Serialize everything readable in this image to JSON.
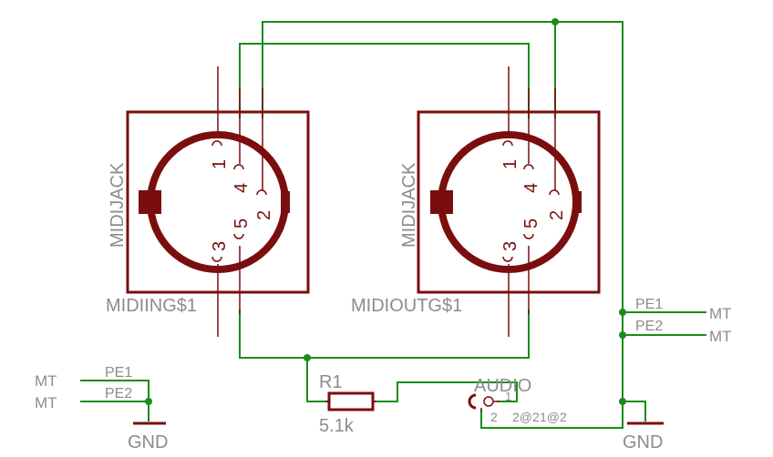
{
  "jacks": [
    {
      "label": "MIDIJACK",
      "name": "MIDIING$1",
      "pins": {
        "p1": "1",
        "p2": "2",
        "p3": "3",
        "p4": "4",
        "p5": "5"
      }
    },
    {
      "label": "MIDIJACK",
      "name": "MIDIOUTG$1",
      "pins": {
        "p1": "1",
        "p2": "2",
        "p3": "3",
        "p4": "4",
        "p5": "5"
      }
    }
  ],
  "resistor": {
    "name": "R1",
    "value": "5.1k"
  },
  "audio": {
    "name": "AUDIO",
    "pin1": "1",
    "pin2": "2",
    "extra": "2@2",
    "extra2": "1@2"
  },
  "left_ground": {
    "pe1": "PE1",
    "pe2": "PE2",
    "mt1": "MT",
    "mt2": "MT",
    "gnd": "GND"
  },
  "right_ground": {
    "pe1": "PE1",
    "pe2": "PE2",
    "mt1": "MT",
    "mt2": "MT",
    "gnd": "GND"
  },
  "colors": {
    "symbol": "#7a0e0e",
    "net": "#1a8c1a",
    "text": "#8c8c8c"
  }
}
